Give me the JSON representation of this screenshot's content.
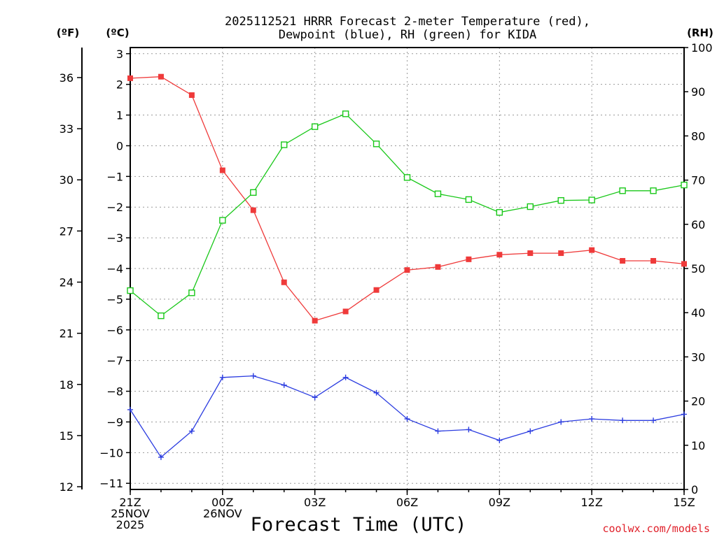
{
  "chart_data": {
    "type": "line",
    "title_line1": "2025112521 HRRR Forecast 2-meter Temperature (red),",
    "title_line2": "Dewpoint (blue), RH (green) for KIDA",
    "xlabel": "Forecast Time (UTC)",
    "credit": "coolwx.com/models",
    "unit_labels": {
      "fahrenheit": "(ºF)",
      "celsius": "(ºC)",
      "rh": "(RH)"
    },
    "x_hours": [
      0,
      1,
      2,
      3,
      4,
      5,
      6,
      7,
      8,
      9,
      10,
      11,
      12,
      13,
      14,
      15,
      16,
      17,
      18
    ],
    "x_ticks": [
      {
        "hour": 0,
        "lines": [
          "21Z",
          "25NOV",
          "2025"
        ]
      },
      {
        "hour": 3,
        "lines": [
          "00Z",
          "26NOV"
        ]
      },
      {
        "hour": 6,
        "lines": [
          "03Z"
        ]
      },
      {
        "hour": 9,
        "lines": [
          "06Z"
        ]
      },
      {
        "hour": 12,
        "lines": [
          "09Z"
        ]
      },
      {
        "hour": 15,
        "lines": [
          "12Z"
        ]
      },
      {
        "hour": 18,
        "lines": [
          "15Z"
        ]
      }
    ],
    "celsius_axis": {
      "min": -11.2,
      "max": 3.2,
      "ticks": [
        3,
        2,
        1,
        0,
        -1,
        -2,
        -3,
        -4,
        -5,
        -6,
        -7,
        -8,
        -9,
        -10,
        -11
      ]
    },
    "fahrenheit_axis": {
      "ticks": [
        36,
        33,
        30,
        27,
        24,
        21,
        18,
        15,
        12
      ]
    },
    "rh_axis": {
      "min": 0,
      "max": 100,
      "ticks": [
        100,
        90,
        80,
        70,
        60,
        50,
        40,
        30,
        20,
        10,
        0
      ]
    },
    "series": [
      {
        "name": "Temperature",
        "unit": "C",
        "color": "#ef3a3a",
        "marker": "filled-square",
        "values": [
          2.2,
          2.25,
          1.65,
          -0.8,
          -2.1,
          -4.45,
          -5.7,
          -5.4,
          -4.7,
          -4.05,
          -3.95,
          -3.7,
          -3.55,
          -3.5,
          -3.5,
          -3.4,
          -3.75,
          -3.75,
          -3.85
        ]
      },
      {
        "name": "Dewpoint",
        "unit": "C",
        "color": "#2b3ce0",
        "marker": "plus",
        "values": [
          -8.6,
          -10.15,
          -9.3,
          -7.55,
          -7.5,
          -7.8,
          -8.2,
          -7.55,
          -8.05,
          -8.9,
          -9.3,
          -9.25,
          -9.6,
          -9.3,
          -9.0,
          -8.9,
          -8.95,
          -8.95,
          -8.75
        ]
      },
      {
        "name": "RH",
        "unit": "%",
        "color": "#19c819",
        "marker": "open-square",
        "values": [
          45,
          39.3,
          44.5,
          60.9,
          67.2,
          78,
          82.1,
          85,
          78.2,
          70.6,
          66.9,
          65.6,
          62.7,
          64,
          65.4,
          65.5,
          67.6,
          67.6,
          68.9
        ]
      }
    ]
  }
}
